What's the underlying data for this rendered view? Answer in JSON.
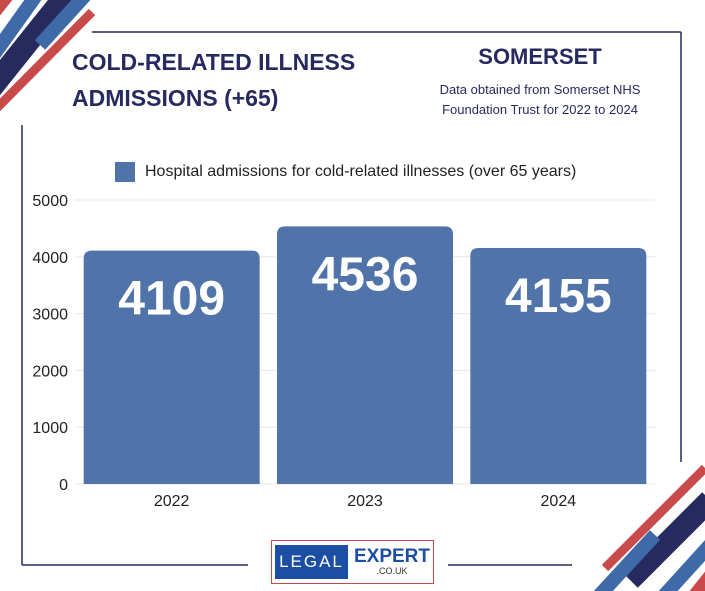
{
  "header": {
    "title_line1": "COLD-RELATED ILLNESS",
    "title_line2": "ADMISSIONS (+65)",
    "region": "SOMERSET",
    "source_line1": "Data obtained from Somerset NHS",
    "source_line2": "Foundation Trust for 2022 to 2024"
  },
  "logo": {
    "left": "LEGAL",
    "right": "EXPERT",
    "domain": ".CO.UK"
  },
  "colors": {
    "bar": "#5074a9",
    "navy": "#262a5e",
    "red": "#c94a4a",
    "blue": "#3f6aa8"
  },
  "chart_data": {
    "type": "bar",
    "categories": [
      "2022",
      "2023",
      "2024"
    ],
    "series": [
      {
        "name": "Hospital admissions for cold-related illnesses (over 65 years)",
        "values": [
          4109,
          4536,
          4155
        ]
      }
    ],
    "ylim": [
      0,
      5000
    ],
    "yticks": [
      0,
      1000,
      2000,
      3000,
      4000,
      5000
    ],
    "legend_position": "top",
    "grid": true
  }
}
